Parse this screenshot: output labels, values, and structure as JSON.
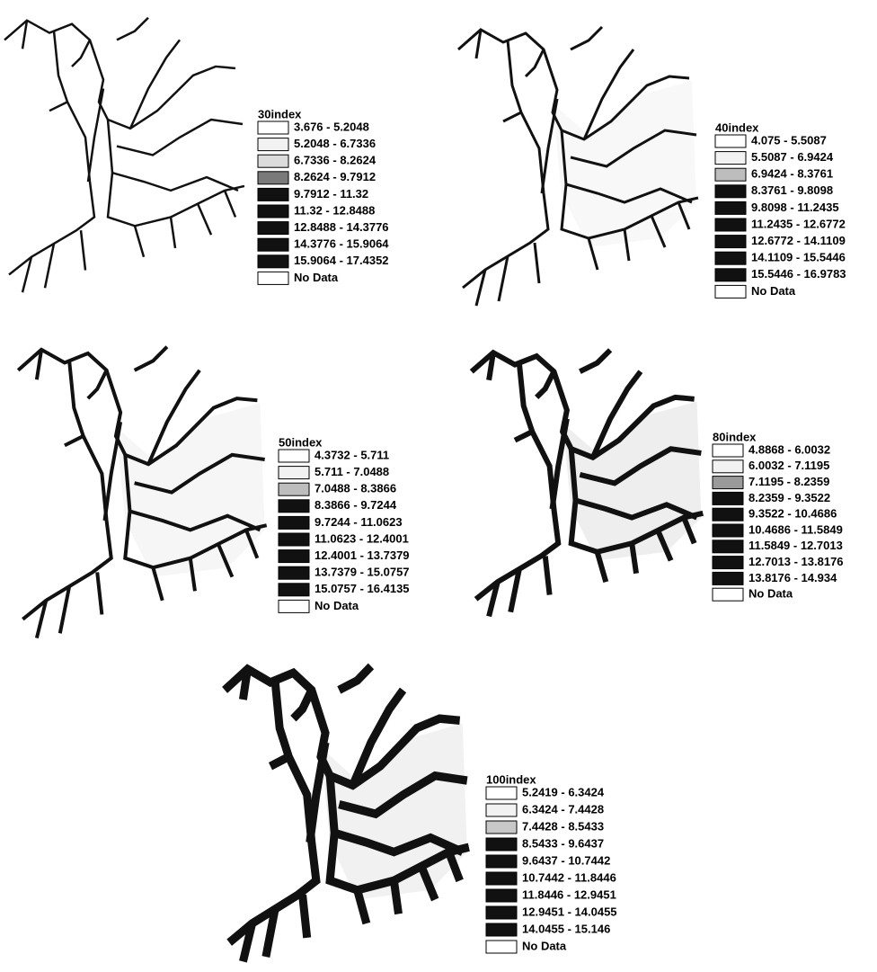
{
  "panels": [
    {
      "title": "30index",
      "labels": [
        "3.676 - 5.2048",
        "5.2048 - 6.7336",
        "6.7336 - 8.2624",
        "8.2624 - 9.7912",
        "9.7912 - 11.32",
        "11.32 - 12.8488",
        "12.8488 - 14.3776",
        "14.3776 - 15.9064",
        "15.9064 - 17.4352",
        "No Data"
      ],
      "colors": [
        "#ffffff",
        "#f2f2f2",
        "#dcdcdc",
        "#7a7a7a",
        "#111111",
        "#111111",
        "#111111",
        "#111111",
        "#111111",
        "#ffffff"
      ]
    },
    {
      "title": "40index",
      "labels": [
        "4.075 - 5.5087",
        "5.5087 - 6.9424",
        "6.9424 - 8.3761",
        "8.3761 - 9.8098",
        "9.8098 - 11.2435",
        "11.2435 - 12.6772",
        "12.6772 - 14.1109",
        "14.1109 - 15.5446",
        "15.5446 - 16.9783",
        "No Data"
      ],
      "colors": [
        "#ffffff",
        "#f2f2f2",
        "#bdbdbd",
        "#111111",
        "#111111",
        "#111111",
        "#111111",
        "#111111",
        "#111111",
        "#ffffff"
      ]
    },
    {
      "title": "50index",
      "labels": [
        "4.3732 - 5.711",
        "5.711 - 7.0488",
        "7.0488 - 8.3866",
        "8.3866 - 9.7244",
        "9.7244 - 11.0623",
        "11.0623 - 12.4001",
        "12.4001 - 13.7379",
        "13.7379 - 15.0757",
        "15.0757 - 16.4135",
        "No Data"
      ],
      "colors": [
        "#ffffff",
        "#f2f2f2",
        "#bdbdbd",
        "#111111",
        "#111111",
        "#111111",
        "#111111",
        "#111111",
        "#111111",
        "#ffffff"
      ]
    },
    {
      "title": "80index",
      "labels": [
        "4.8868 - 6.0032",
        "6.0032 - 7.1195",
        "7.1195 - 8.2359",
        "8.2359 - 9.3522",
        "9.3522 - 10.4686",
        "10.4686 - 11.5849",
        "11.5849 - 12.7013",
        "12.7013 - 13.8176",
        "13.8176 - 14.934",
        "No Data"
      ],
      "colors": [
        "#ffffff",
        "#f2f2f2",
        "#9a9a9a",
        "#111111",
        "#111111",
        "#111111",
        "#111111",
        "#111111",
        "#111111",
        "#ffffff"
      ]
    },
    {
      "title": "100index",
      "labels": [
        "5.2419 - 6.3424",
        "6.3424 - 7.4428",
        "7.4428 - 8.5433",
        "8.5433 - 9.6437",
        "9.6437 - 10.7442",
        "10.7442 - 11.8446",
        "11.8446 - 12.9451",
        "12.9451 - 14.0455",
        "14.0455 - 15.146",
        "No Data"
      ],
      "colors": [
        "#ffffff",
        "#f2f2f2",
        "#c8c8c8",
        "#111111",
        "#111111",
        "#111111",
        "#111111",
        "#111111",
        "#111111",
        "#ffffff"
      ]
    }
  ]
}
